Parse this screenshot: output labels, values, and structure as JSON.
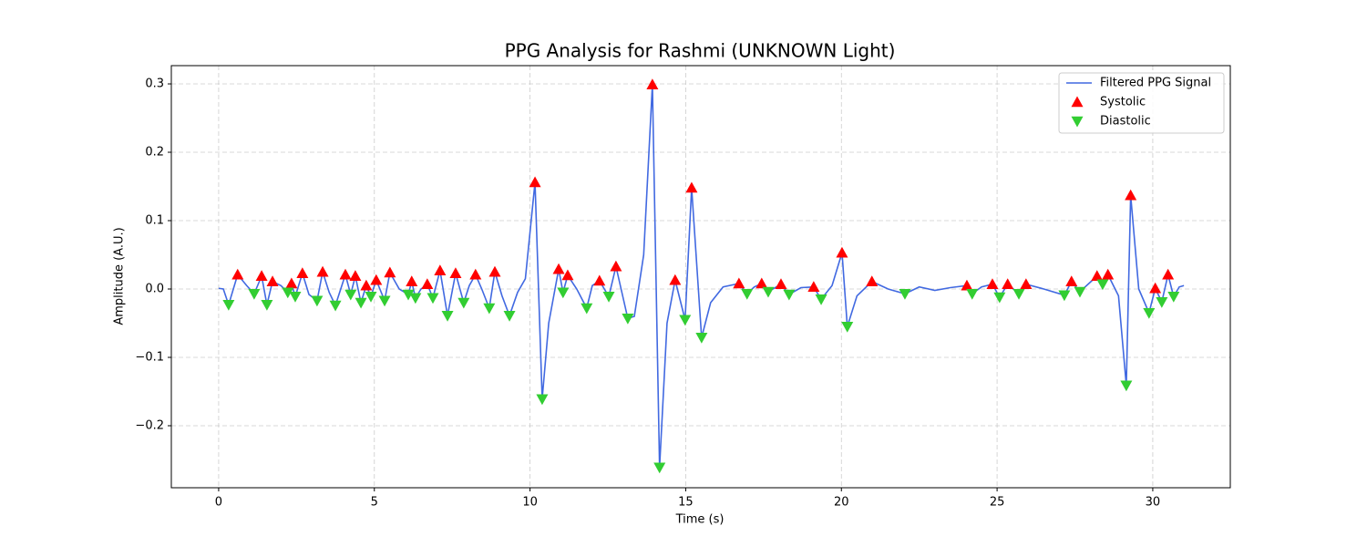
{
  "chart_data": {
    "type": "line",
    "title": "PPG Analysis for Rashmi (UNKNOWN Light)",
    "x_label": "Time (s)",
    "y_label": "Amplitude (A.U.)",
    "xlim": [
      -1.52,
      32.49
    ],
    "ylim": [
      -0.2907,
      0.3267
    ],
    "xticks": [
      0,
      5,
      10,
      15,
      20,
      25,
      30
    ],
    "yticks": [
      {
        "value": -0.2,
        "label": "−0.2"
      },
      {
        "value": -0.1,
        "label": "−0.1"
      },
      {
        "value": 0.0,
        "label": "0.0"
      },
      0.1,
      0.2,
      0.3
    ],
    "grid": true,
    "legend": "upper right",
    "series": [
      {
        "name": "Filtered PPG Signal",
        "type": "line",
        "color": "#4169e1",
        "x": [
          0,
          0.15,
          0.32,
          0.61,
          0.9,
          1.14,
          1.38,
          1.55,
          1.73,
          2.0,
          2.22,
          2.34,
          2.46,
          2.69,
          2.9,
          3.16,
          3.34,
          3.55,
          3.75,
          4.07,
          4.24,
          4.39,
          4.57,
          4.74,
          4.89,
          5.06,
          5.33,
          5.5,
          5.8,
          6.09,
          6.2,
          6.32,
          6.5,
          6.7,
          6.88,
          7.11,
          7.35,
          7.61,
          7.87,
          8.05,
          8.25,
          8.45,
          8.69,
          8.87,
          9.1,
          9.34,
          9.6,
          9.85,
          10.16,
          10.39,
          10.6,
          10.92,
          11.06,
          11.21,
          11.5,
          11.82,
          12.0,
          12.23,
          12.53,
          12.76,
          13.14,
          13.35,
          13.65,
          13.93,
          14.16,
          14.4,
          14.66,
          14.98,
          15.19,
          15.51,
          15.8,
          16.2,
          16.71,
          16.97,
          17.2,
          17.44,
          17.65,
          18.06,
          18.32,
          18.7,
          19.11,
          19.35,
          19.7,
          20.02,
          20.19,
          20.5,
          20.98,
          21.5,
          22.04,
          22.5,
          23.0,
          23.5,
          24.03,
          24.2,
          24.5,
          24.85,
          25.08,
          25.34,
          25.7,
          25.93,
          26.5,
          27.16,
          27.39,
          27.66,
          28.21,
          28.39,
          28.56,
          28.9,
          29.15,
          29.29,
          29.55,
          29.88,
          30.08,
          30.29,
          30.49,
          30.67,
          30.85,
          31.0
        ],
        "values": [
          0.001,
          0,
          -0.023,
          0.021,
          0.005,
          -0.007,
          0.019,
          -0.023,
          0.011,
          0.005,
          -0.005,
          0.008,
          -0.011,
          0.023,
          -0.008,
          -0.017,
          0.025,
          -0.005,
          -0.024,
          0.021,
          -0.008,
          0.019,
          -0.02,
          0.005,
          -0.011,
          0.013,
          -0.017,
          0.024,
          0.0,
          -0.008,
          0.011,
          -0.013,
          0.0,
          0.007,
          -0.013,
          0.027,
          -0.039,
          0.023,
          -0.02,
          0.005,
          0.021,
          0.0,
          -0.028,
          0.025,
          -0.01,
          -0.039,
          -0.005,
          0.015,
          0.156,
          -0.161,
          -0.05,
          0.029,
          -0.005,
          0.02,
          0.0,
          -0.028,
          0.005,
          0.012,
          -0.011,
          0.033,
          -0.043,
          -0.04,
          0.05,
          0.299,
          -0.261,
          -0.05,
          0.013,
          -0.045,
          0.148,
          -0.071,
          -0.02,
          0.003,
          0.008,
          -0.007,
          0.003,
          0.008,
          -0.004,
          0.007,
          -0.008,
          0.002,
          0.003,
          -0.015,
          0.005,
          0.053,
          -0.055,
          -0.01,
          0.011,
          0.0,
          -0.007,
          0.003,
          -0.002,
          0.002,
          0.005,
          -0.007,
          0.003,
          0.007,
          -0.012,
          0.007,
          -0.007,
          0.007,
          0.0,
          -0.009,
          0.011,
          -0.004,
          0.019,
          0.007,
          0.021,
          -0.01,
          -0.141,
          0.137,
          0.0,
          -0.035,
          0.001,
          -0.019,
          0.021,
          -0.011,
          0.003,
          0.005
        ]
      },
      {
        "name": "Systolic",
        "type": "scatter",
        "marker": "up",
        "color": "#ff0000",
        "x": [
          0.61,
          1.38,
          1.73,
          2.34,
          2.69,
          3.34,
          4.07,
          4.39,
          4.74,
          5.06,
          5.5,
          6.2,
          6.7,
          7.11,
          7.61,
          8.25,
          8.87,
          10.16,
          10.92,
          11.21,
          12.23,
          12.76,
          13.93,
          14.66,
          15.19,
          16.71,
          17.44,
          18.06,
          19.11,
          20.02,
          20.98,
          24.03,
          24.85,
          25.34,
          25.93,
          27.39,
          28.21,
          28.56,
          29.29,
          30.08,
          30.49
        ],
        "values": [
          0.021,
          0.019,
          0.011,
          0.008,
          0.023,
          0.025,
          0.021,
          0.019,
          0.005,
          0.013,
          0.024,
          0.011,
          0.007,
          0.027,
          0.023,
          0.021,
          0.025,
          0.156,
          0.029,
          0.02,
          0.012,
          0.033,
          0.299,
          0.013,
          0.148,
          0.008,
          0.008,
          0.007,
          0.003,
          0.053,
          0.011,
          0.005,
          0.007,
          0.007,
          0.007,
          0.011,
          0.019,
          0.021,
          0.137,
          0.001,
          0.021
        ]
      },
      {
        "name": "Diastolic",
        "type": "scatter",
        "marker": "down",
        "color": "#32cd32",
        "x": [
          0.32,
          1.14,
          1.55,
          2.22,
          2.46,
          3.16,
          3.75,
          4.24,
          4.57,
          4.89,
          5.33,
          6.09,
          6.32,
          6.88,
          7.35,
          7.87,
          8.69,
          9.34,
          10.39,
          11.06,
          11.82,
          12.53,
          13.14,
          14.16,
          14.98,
          15.51,
          16.97,
          17.65,
          18.32,
          19.35,
          20.19,
          22.04,
          24.2,
          25.08,
          25.7,
          27.16,
          27.66,
          28.39,
          29.15,
          29.88,
          30.29,
          30.67
        ],
        "values": [
          -0.023,
          -0.007,
          -0.023,
          -0.005,
          -0.011,
          -0.017,
          -0.024,
          -0.008,
          -0.02,
          -0.011,
          -0.017,
          -0.008,
          -0.013,
          -0.013,
          -0.039,
          -0.02,
          -0.028,
          -0.039,
          -0.161,
          -0.005,
          -0.028,
          -0.011,
          -0.043,
          -0.261,
          -0.045,
          -0.071,
          -0.007,
          -0.004,
          -0.008,
          -0.015,
          -0.055,
          -0.007,
          -0.007,
          -0.012,
          -0.007,
          -0.009,
          -0.004,
          0.007,
          -0.141,
          -0.035,
          -0.019,
          -0.011
        ]
      }
    ]
  }
}
